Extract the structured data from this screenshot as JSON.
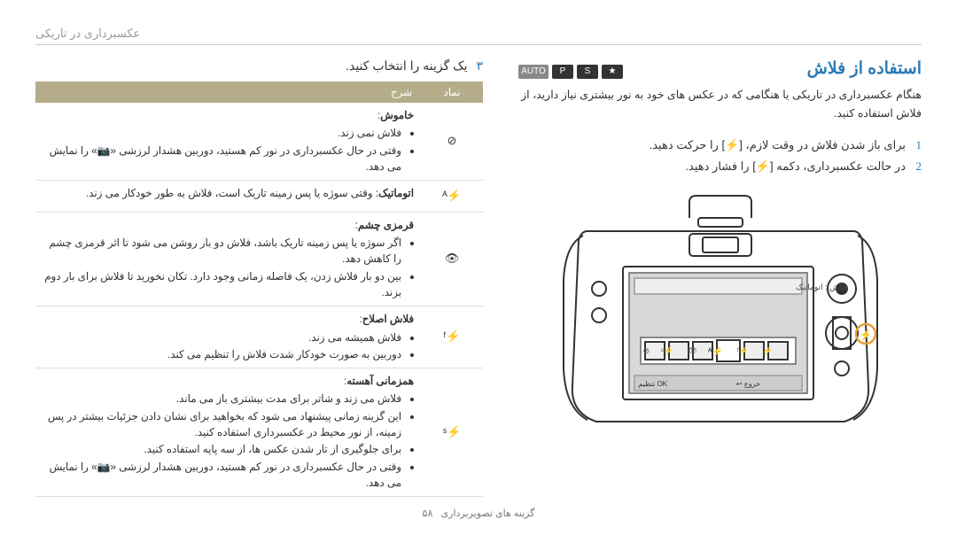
{
  "header": "عکسبرداری در تاریکی",
  "title": "استفاده از فلاش",
  "modes": [
    "AUTO",
    "P",
    "S",
    "★"
  ],
  "intro": "هنگام عکسبرداری در تاریکی یا هنگامی که در عکس های خود به نور بیشتری نیاز دارید، از فلاش استفاده کنید.",
  "steps": [
    "برای باز شدن فلاش در وقت لازم، [⚡] را حرکت دهید.",
    "در حالت عکسبرداری، دکمه [⚡] را فشار دهید."
  ],
  "step3_num": "۳",
  "step3_text": "یک گزینه را انتخاب کنید.",
  "table": {
    "head_icon": "نماد",
    "head_desc": "شرح",
    "rows": [
      {
        "icon": "⊘",
        "title": "خاموش",
        "bullets": [
          "فلاش نمی زند.",
          "وقتی در حال عکسبرداری در نور کم هستید، دوربین هشدار لرزشی «📷» را نمایش می دهد."
        ]
      },
      {
        "icon": "⚡ᴬ",
        "title": "اتوماتیک",
        "text_after_title": "وقتی سوژه یا پس زمینه تاریک است، فلاش به طور خودکار می زند.",
        "bullets": []
      },
      {
        "icon": "👁",
        "title": "قرمزی چشم",
        "bullets": [
          "اگر سوژه یا پس زمینه تاریک باشد، فلاش دو بار روشن می شود تا اثر قرمزی چشم را کاهش دهد.",
          "بین دو بار فلاش زدن، یک فاصله زمانی وجود دارد. تکان نخورید تا فلاش برای بار دوم بزند."
        ]
      },
      {
        "icon": "⚡ᶠ",
        "title": "فلاش اصلاح",
        "bullets": [
          "فلاش همیشه می زند.",
          "دوربین به صورت خودکار شدت فلاش را تنظیم می کند."
        ]
      },
      {
        "icon": "⚡ˢ",
        "title": "همزمانی آهسته",
        "bullets": [
          "فلاش می زند و شاتر برای مدت بیشتری باز می ماند.",
          "این گزینه زمانی پیشنهاد می شود که بخواهید برای نشان دادن جزئیات بیشتر در پس زمینه، از نور محیط در عکسبرداری استفاده کنید.",
          "برای جلوگیری از تار شدن عکس ها، از سه پایه استفاده کنید.",
          "وقتی در حال عکسبرداری در نور کم هستید، دوربین هشدار لرزشی «📷» را نمایش می دهد."
        ]
      }
    ]
  },
  "lcd": {
    "top": "فلاش : اتوماتیک",
    "btn_ok": "OK تنظیم",
    "btn_back": "خروج ↩"
  },
  "footer_label": "گزینه های تصویربرداری",
  "footer_page": "۵۸",
  "colors": {
    "accent": "#2a7bb8",
    "table_head": "#b5ac8a",
    "highlight": "#e8a038"
  }
}
